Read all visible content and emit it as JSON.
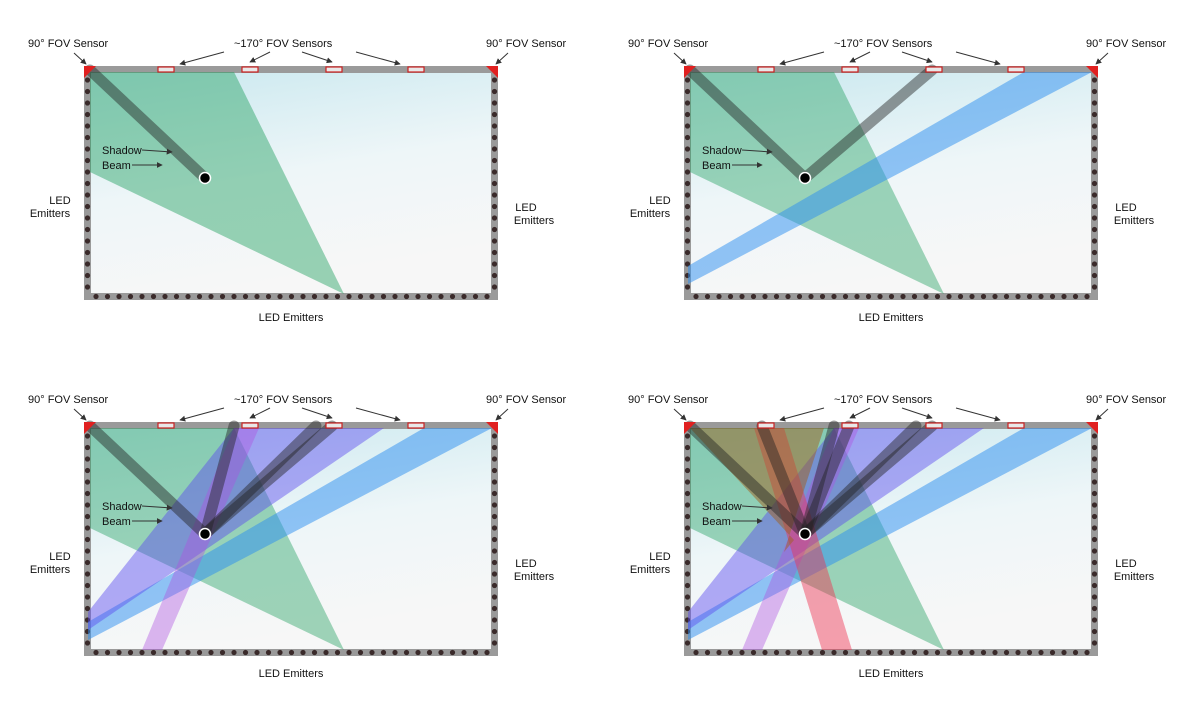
{
  "labels": {
    "fov90_sensor": "90° FOV Sensor",
    "fov170_sensors": "~170° FOV Sensors",
    "shadow": "Shadow",
    "beam": "Beam",
    "led_line1": "LED",
    "led_line2": "Emitters",
    "led_bottom": "LED Emitters"
  },
  "panels": [
    {
      "id": "panel-1",
      "beams": [
        {
          "color": "#22a060",
          "opacity": 0.45
        }
      ],
      "shadows": 1
    },
    {
      "id": "panel-2",
      "beams": [
        {
          "color": "#22a060",
          "opacity": 0.42
        },
        {
          "color": "#2b8ef0",
          "opacity": 0.5
        }
      ],
      "shadows": 2
    },
    {
      "id": "panel-3",
      "beams": [
        {
          "color": "#22a060",
          "opacity": 0.42
        },
        {
          "color": "#2b8ef0",
          "opacity": 0.5
        },
        {
          "color": "#5a4af0",
          "opacity": 0.45
        },
        {
          "color": "#b050e0",
          "opacity": 0.4
        }
      ],
      "shadows": 4
    },
    {
      "id": "panel-4",
      "beams": [
        {
          "color": "#22a060",
          "opacity": 0.42
        },
        {
          "color": "#2b8ef0",
          "opacity": 0.5
        },
        {
          "color": "#5a4af0",
          "opacity": 0.45
        },
        {
          "color": "#b050e0",
          "opacity": 0.4
        },
        {
          "color": "#f03050",
          "opacity": 0.45
        },
        {
          "color": "#a06020",
          "opacity": 0.5
        }
      ],
      "shadows": 6
    }
  ],
  "colors": {
    "frame": "#9a9a9a",
    "sensor_corner": "#e02020",
    "sensor_small": "#e8e8e8",
    "sensor_small_border": "#cc2020",
    "screen_top": "#cdeaf0",
    "screen_bottom": "#f6f6f6",
    "touch_point": "#000000",
    "shadow": "#222222"
  }
}
